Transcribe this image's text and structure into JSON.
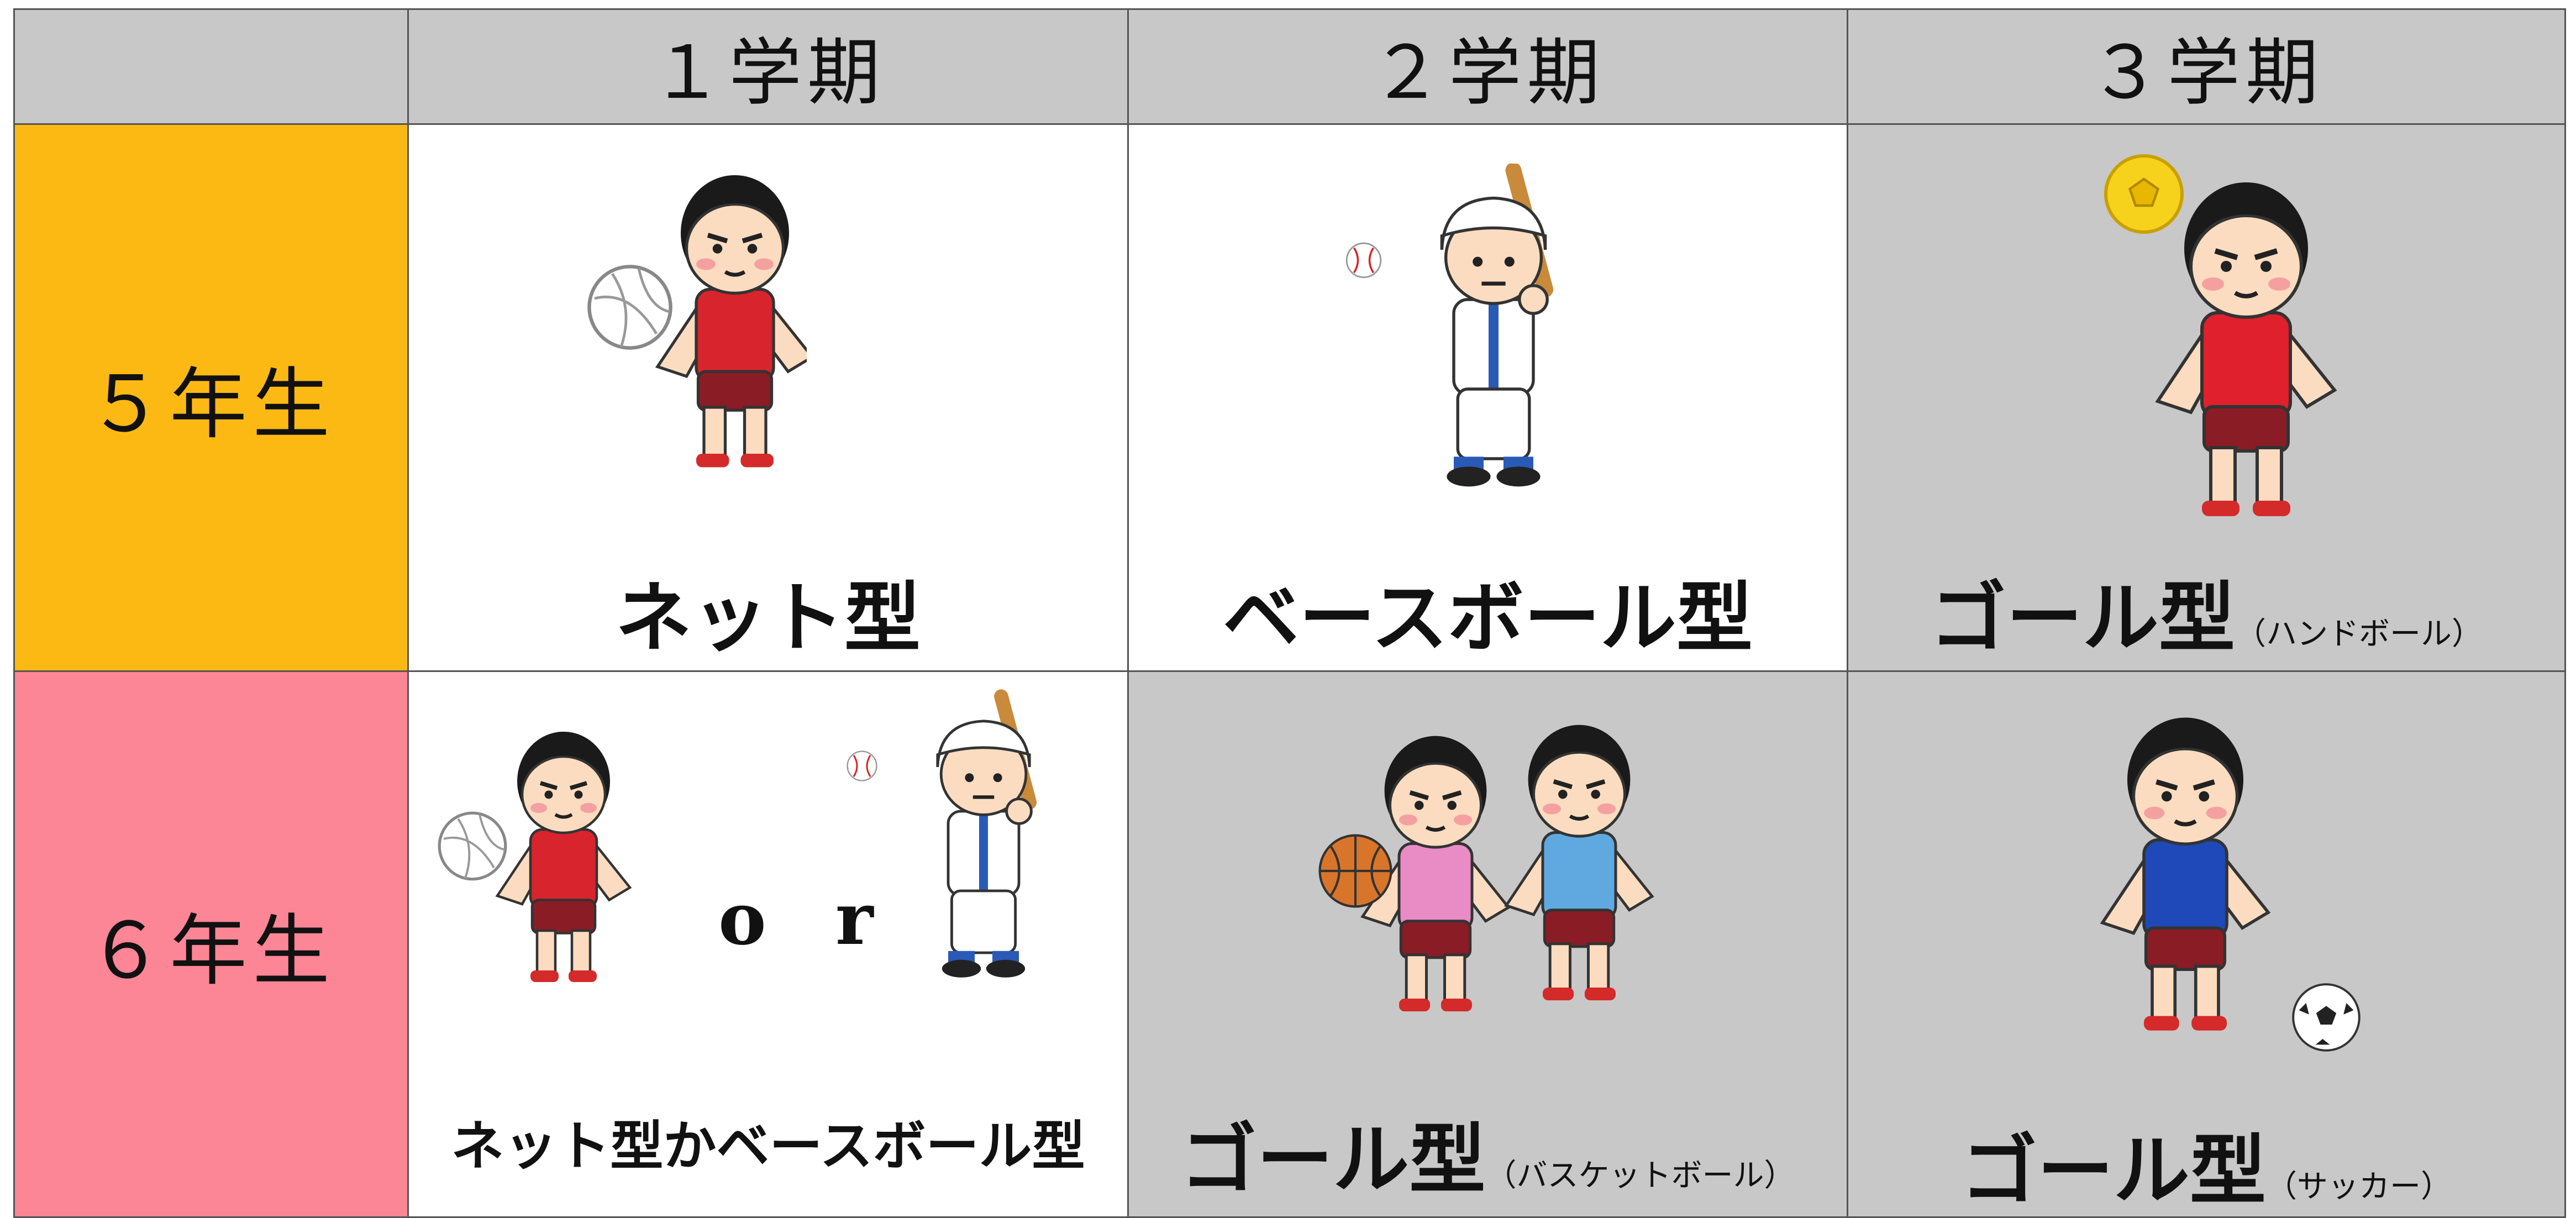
{
  "table": {
    "columns": [
      "１学期",
      "２学期",
      "３学期"
    ],
    "rows": [
      {
        "label": "５年生",
        "cells": [
          {
            "type": "ネット型"
          },
          {
            "type": "ベースボール型"
          },
          {
            "type": "ゴール型",
            "note": "（ハンドボール）"
          }
        ]
      },
      {
        "label": "６年生",
        "cells": [
          {
            "type": "ネット型かベースボール型",
            "connector": "o r"
          },
          {
            "type": "ゴール型",
            "note": "（バスケットボール）"
          },
          {
            "type": "ゴール型",
            "note": "（サッカー）"
          }
        ]
      }
    ]
  }
}
